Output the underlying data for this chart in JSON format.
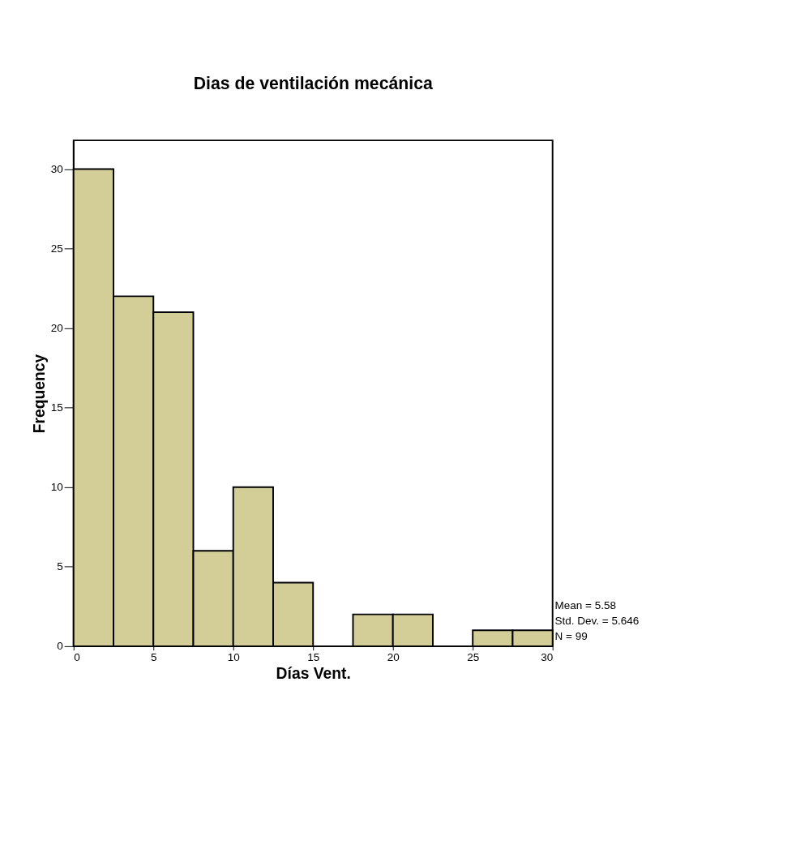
{
  "chart_data": {
    "type": "histogram",
    "title": "Dias de ventilación mecánica",
    "xlabel": "Días Vent.",
    "ylabel": "Frequency",
    "bins": [
      0,
      2.5,
      5,
      7.5,
      10,
      12.5,
      15,
      17.5,
      20,
      22.5,
      25,
      27.5,
      30
    ],
    "values": [
      30,
      22,
      21,
      6,
      10,
      4,
      0,
      2,
      2,
      0,
      1,
      1
    ],
    "color": "#d3ce98",
    "xlim": [
      0,
      30
    ],
    "xticks": [
      0,
      5,
      10,
      15,
      20,
      25,
      30
    ],
    "ylim": [
      0,
      31.8
    ],
    "yticks": [
      0,
      5,
      10,
      15,
      20,
      25,
      30
    ],
    "grid": false,
    "annotations": [
      "Mean = 5.58",
      "Std. Dev. = 5.646",
      "N = 99"
    ]
  }
}
